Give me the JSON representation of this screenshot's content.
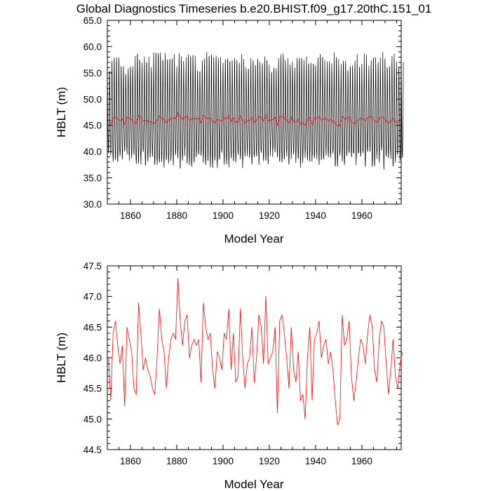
{
  "title": "Global Diagnostics Timeseries b.e20.BHIST.f09_g17.20thC.151_01",
  "colors": {
    "monthly": "#000000",
    "annual": "#ff0000",
    "axes": "#000000",
    "background": "#ffffff"
  },
  "chart_data": [
    {
      "type": "line",
      "xlabel": "Model Year",
      "ylabel": "HBLT (m)",
      "xlim": [
        1850,
        1977
      ],
      "ylim": [
        30.0,
        65.0
      ],
      "xticks": [
        "1860",
        "1880",
        "1900",
        "1920",
        "1940",
        "1960"
      ],
      "yticks": [
        "30.0",
        "35.0",
        "40.0",
        "45.0",
        "50.0",
        "55.0",
        "60.0",
        "65.0"
      ],
      "series": [
        {
          "name": "",
          "color": "#000000",
          "resolution": "monthly",
          "y_range": [
            34.8,
            60.5
          ],
          "typical_annual_min": 38.5,
          "typical_annual_max": 57.5
        },
        {
          "name": "",
          "color": "#ff0000",
          "resolution": "annual",
          "values_ref": "annual_hblt"
        }
      ]
    },
    {
      "type": "line",
      "xlabel": "Model Year",
      "ylabel": "HBLT (m)",
      "xlim": [
        1850,
        1977
      ],
      "ylim": [
        44.5,
        47.5
      ],
      "xticks": [
        "1860",
        "1880",
        "1900",
        "1920",
        "1940",
        "1960"
      ],
      "yticks": [
        "44.5",
        "45.0",
        "45.5",
        "46.0",
        "46.5",
        "47.0",
        "47.5"
      ],
      "series": [
        {
          "name": "",
          "color": "#ff0000",
          "resolution": "annual",
          "values_ref": "annual_hblt"
        }
      ]
    }
  ],
  "annual_hblt": {
    "start_year": 1850.5,
    "step": 1,
    "values": [
      46.0,
      45.3,
      46.4,
      46.6,
      46.2,
      45.9,
      46.2,
      45.2,
      46.5,
      46.3,
      46.1,
      45.5,
      45.4,
      46.9,
      46.4,
      45.8,
      46.0,
      45.8,
      45.7,
      45.5,
      45.4,
      46.0,
      46.8,
      46.3,
      46.1,
      45.5,
      46.0,
      46.3,
      46.4,
      46.3,
      47.3,
      46.6,
      46.2,
      46.6,
      46.7,
      46.0,
      46.2,
      46.3,
      46.2,
      46.3,
      45.6,
      46.9,
      46.5,
      46.3,
      46.4,
      45.8,
      45.5,
      46.1,
      46.0,
      45.8,
      46.4,
      46.3,
      46.8,
      45.8,
      46.4,
      45.6,
      45.7,
      46.8,
      46.0,
      45.5,
      45.9,
      46.0,
      46.5,
      45.6,
      46.0,
      46.7,
      46.5,
      45.9,
      47.0,
      45.9,
      46.0,
      46.1,
      46.5,
      45.1,
      46.6,
      46.7,
      46.4,
      46.0,
      45.5,
      46.5,
      45.8,
      45.6,
      46.1,
      45.3,
      45.4,
      45.0,
      46.0,
      46.5,
      45.3,
      46.3,
      46.4,
      46.6,
      46.0,
      46.2,
      46.3,
      45.9,
      46.1,
      45.8,
      45.3,
      44.9,
      45.0,
      46.7,
      46.2,
      46.3,
      46.6,
      45.7,
      45.3,
      45.6,
      46.0,
      46.3,
      46.2,
      45.9,
      46.4,
      46.7,
      46.5,
      45.8,
      45.6,
      46.3,
      46.6,
      46.5,
      45.9,
      45.4,
      45.8,
      46.3,
      45.7,
      45.5,
      45.9,
      46.1
    ]
  }
}
